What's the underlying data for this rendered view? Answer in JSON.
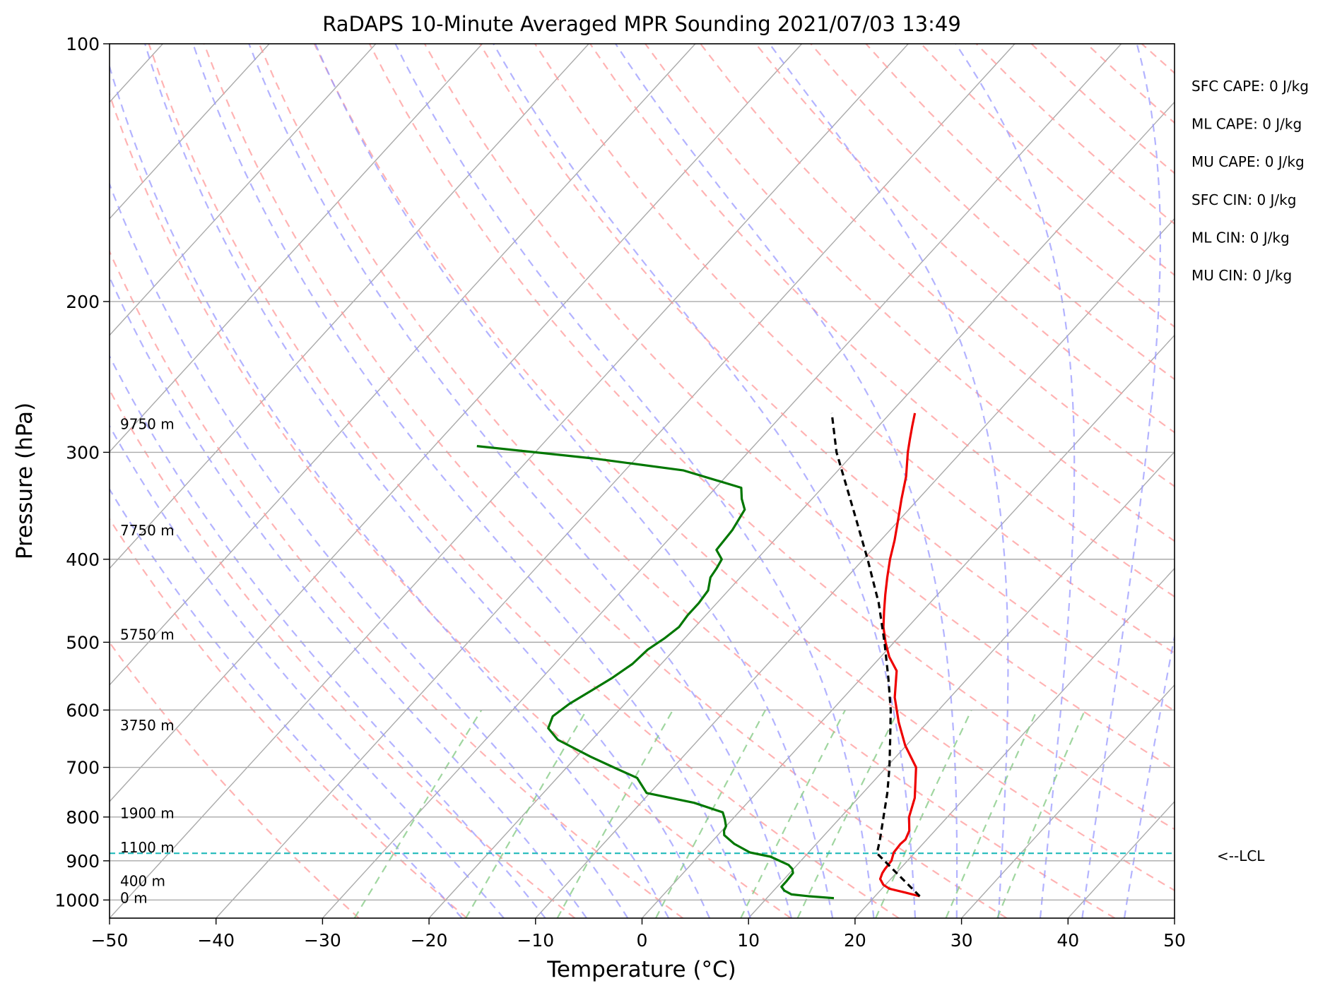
{
  "chart_data": {
    "type": "line",
    "subtype": "skew-T log-P diagram",
    "title": "RaDAPS 10-Minute Averaged MPR Sounding 2021/07/03 13:49",
    "xlabel": "Temperature (°C)",
    "ylabel": "Pressure (hPa)",
    "xlim": [
      -50,
      50
    ],
    "ylim": [
      1050,
      100
    ],
    "y_scale": "log",
    "grid": true,
    "x_ticks": [
      "−50",
      "−40",
      "−30",
      "−20",
      "−10",
      "0",
      "10",
      "20",
      "30",
      "40",
      "50"
    ],
    "y_ticks": [
      {
        "p": 100,
        "label": "100"
      },
      {
        "p": 200,
        "label": "200"
      },
      {
        "p": 300,
        "label": "300"
      },
      {
        "p": 400,
        "label": "400"
      },
      {
        "p": 500,
        "label": "500"
      },
      {
        "p": 600,
        "label": "600"
      },
      {
        "p": 700,
        "label": "700"
      },
      {
        "p": 800,
        "label": "800"
      },
      {
        "p": 900,
        "label": "900"
      },
      {
        "p": 1000,
        "label": "1000"
      }
    ],
    "height_labels": [
      {
        "p": 995,
        "label": "0 m"
      },
      {
        "p": 950,
        "label": "400 m"
      },
      {
        "p": 868,
        "label": "1100 m"
      },
      {
        "p": 792,
        "label": "1900 m"
      },
      {
        "p": 625,
        "label": "3750 m"
      },
      {
        "p": 490,
        "label": "5750 m"
      },
      {
        "p": 370,
        "label": "7750 m"
      },
      {
        "p": 278,
        "label": "9750 m"
      }
    ],
    "lcl": {
      "p": 882,
      "label": "<--LCL",
      "color": "#22bbbb"
    },
    "series": [
      {
        "role": "temperature",
        "color": "#ee0000",
        "points": [
          [
            990,
            24.2
          ],
          [
            980,
            22.5
          ],
          [
            970,
            20.7
          ],
          [
            960,
            19.8
          ],
          [
            945,
            19.0
          ],
          [
            930,
            18.7
          ],
          [
            920,
            18.6
          ],
          [
            900,
            18.5
          ],
          [
            880,
            18.0
          ],
          [
            860,
            17.9
          ],
          [
            850,
            18.0
          ],
          [
            830,
            17.6
          ],
          [
            800,
            16.4
          ],
          [
            760,
            15.3
          ],
          [
            700,
            12.8
          ],
          [
            660,
            9.9
          ],
          [
            620,
            7.3
          ],
          [
            580,
            4.8
          ],
          [
            540,
            2.7
          ],
          [
            520,
            0.8
          ],
          [
            500,
            -0.8
          ],
          [
            480,
            -2.3
          ],
          [
            460,
            -3.6
          ],
          [
            440,
            -4.9
          ],
          [
            420,
            -6.2
          ],
          [
            400,
            -7.5
          ],
          [
            380,
            -8.7
          ],
          [
            360,
            -10.1
          ],
          [
            340,
            -11.6
          ],
          [
            320,
            -13.1
          ],
          [
            300,
            -15.0
          ],
          [
            290,
            -15.9
          ],
          [
            280,
            -16.8
          ],
          [
            270,
            -17.7
          ]
        ]
      },
      {
        "role": "dewpoint",
        "color": "#007700",
        "points": [
          [
            995,
            16.3
          ],
          [
            990,
            13.8
          ],
          [
            985,
            12.0
          ],
          [
            975,
            11.0
          ],
          [
            965,
            10.4
          ],
          [
            950,
            10.4
          ],
          [
            930,
            10.3
          ],
          [
            920,
            9.9
          ],
          [
            910,
            9.2
          ],
          [
            890,
            6.8
          ],
          [
            880,
            4.5
          ],
          [
            860,
            2.3
          ],
          [
            840,
            0.6
          ],
          [
            830,
            0.2
          ],
          [
            820,
            0.0
          ],
          [
            805,
            -0.7
          ],
          [
            790,
            -1.5
          ],
          [
            770,
            -5.0
          ],
          [
            750,
            -10.3
          ],
          [
            720,
            -12.5
          ],
          [
            700,
            -15.6
          ],
          [
            680,
            -18.7
          ],
          [
            650,
            -23.2
          ],
          [
            630,
            -25.1
          ],
          [
            610,
            -25.7
          ],
          [
            590,
            -25.2
          ],
          [
            570,
            -24.3
          ],
          [
            550,
            -23.4
          ],
          [
            530,
            -22.7
          ],
          [
            510,
            -22.5
          ],
          [
            495,
            -21.9
          ],
          [
            480,
            -21.5
          ],
          [
            465,
            -21.7
          ],
          [
            450,
            -21.7
          ],
          [
            435,
            -21.9
          ],
          [
            420,
            -22.8
          ],
          [
            410,
            -23.0
          ],
          [
            400,
            -23.3
          ],
          [
            390,
            -24.6
          ],
          [
            370,
            -24.8
          ],
          [
            350,
            -25.4
          ],
          [
            340,
            -26.6
          ],
          [
            330,
            -27.6
          ],
          [
            315,
            -34.5
          ],
          [
            305,
            -44.0
          ],
          [
            300,
            -50.0
          ],
          [
            295,
            -56.0
          ]
        ]
      },
      {
        "role": "parcel path",
        "color": "#000000",
        "points": [
          [
            990,
            24.2
          ],
          [
            882,
            16.5
          ],
          [
            850,
            15.6
          ],
          [
            800,
            14.0
          ],
          [
            750,
            12.3
          ],
          [
            700,
            10.3
          ],
          [
            650,
            8.0
          ],
          [
            600,
            5.5
          ],
          [
            550,
            2.5
          ],
          [
            500,
            -0.9
          ],
          [
            450,
            -4.8
          ],
          [
            400,
            -9.6
          ],
          [
            350,
            -15.2
          ],
          [
            300,
            -21.7
          ],
          [
            270,
            -25.5
          ]
        ]
      }
    ],
    "background_lines": {
      "isotherm_color": "#aaaaaa",
      "dry_adiabat_color": "#ff9999",
      "moist_adiabat_color": "#9999ff",
      "mixing_ratio_color": "#88cc88"
    }
  },
  "annotations": [
    "SFC CAPE: 0 J/kg",
    "ML CAPE: 0 J/kg",
    "MU CAPE: 0 J/kg",
    "SFC CIN: 0 J/kg",
    "ML CIN: 0 J/kg",
    "MU CIN: 0 J/kg"
  ]
}
